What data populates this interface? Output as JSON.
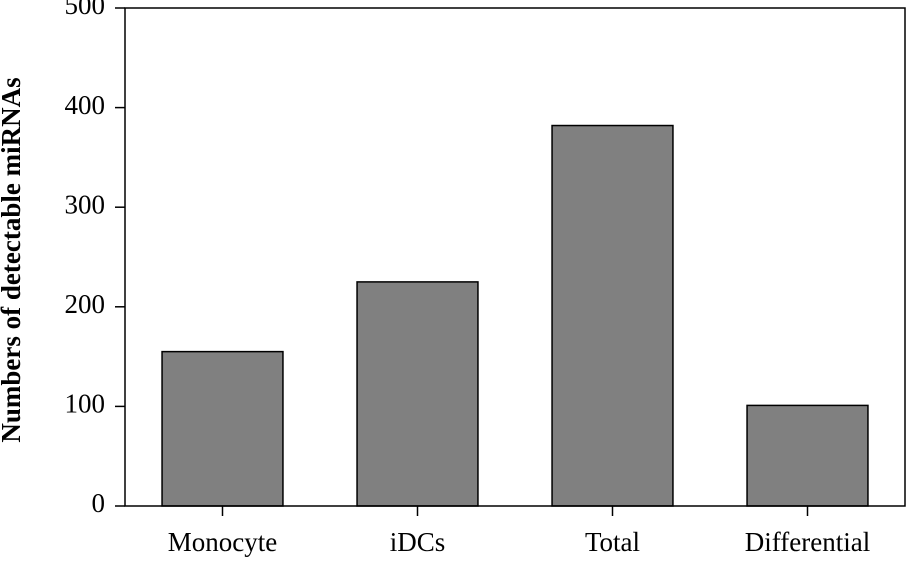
{
  "chart_data": {
    "type": "bar",
    "y_label": "Numbers of detectable miRNAs",
    "categories": [
      "Monocyte",
      "iDCs",
      "Total",
      "Differential"
    ],
    "values": [
      155,
      225,
      382,
      101
    ],
    "color": "#808080",
    "ylim": [
      0,
      500
    ],
    "yticks": [
      0,
      100,
      200,
      300,
      400,
      500
    ]
  }
}
